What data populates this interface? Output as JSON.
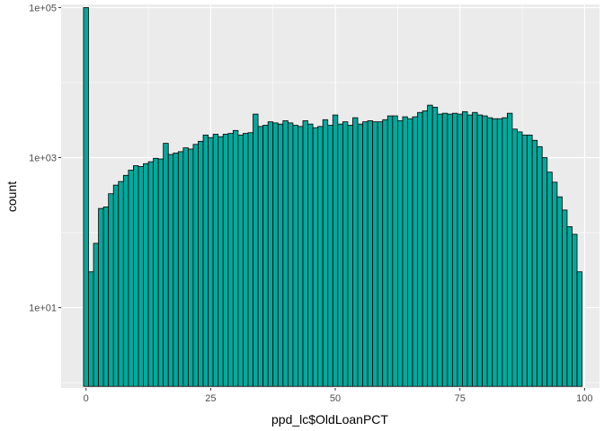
{
  "chart_data": {
    "type": "bar",
    "subtype": "histogram",
    "title": "",
    "xlabel": "ppd_lc$OldLoanPCT",
    "ylabel": "count",
    "y_scale": "log10",
    "xlim": [
      -5,
      103
    ],
    "ylim": [
      0.85,
      110000
    ],
    "x_ticks": [
      0,
      25,
      50,
      75,
      100
    ],
    "x_tick_labels": [
      "0",
      "25",
      "50",
      "75",
      "100"
    ],
    "y_ticks": [
      10,
      1000,
      100000
    ],
    "y_tick_labels": [
      "1e+01",
      "1e+03",
      "1e+05"
    ],
    "grid": true,
    "background": "grey panel",
    "bin_width": 1,
    "bins_start": -0.5,
    "fill_color": "#00a99d",
    "edge_color": "#000000",
    "values": [
      100000,
      30,
      72,
      210,
      220,
      330,
      430,
      480,
      580,
      680,
      780,
      760,
      830,
      880,
      980,
      960,
      1550,
      1100,
      1150,
      1200,
      1350,
      1300,
      1500,
      1650,
      2000,
      1850,
      2050,
      1900,
      2050,
      2100,
      2300,
      2000,
      2100,
      2150,
      3800,
      2600,
      2700,
      3000,
      2900,
      2800,
      3100,
      2900,
      2700,
      2600,
      3100,
      2800,
      2500,
      2600,
      3200,
      2700,
      3700,
      2800,
      3000,
      2700,
      3400,
      2800,
      3000,
      3100,
      3000,
      3000,
      3200,
      3600,
      3600,
      3100,
      3500,
      3300,
      3500,
      4000,
      4200,
      5000,
      4700,
      3800,
      3900,
      3800,
      3900,
      3800,
      4100,
      3700,
      4000,
      3700,
      3600,
      3400,
      3300,
      3300,
      3400,
      3900,
      2400,
      2200,
      2000,
      2000,
      1700,
      1400,
      1000,
      640,
      470,
      300,
      200,
      120,
      95,
      30
    ]
  }
}
